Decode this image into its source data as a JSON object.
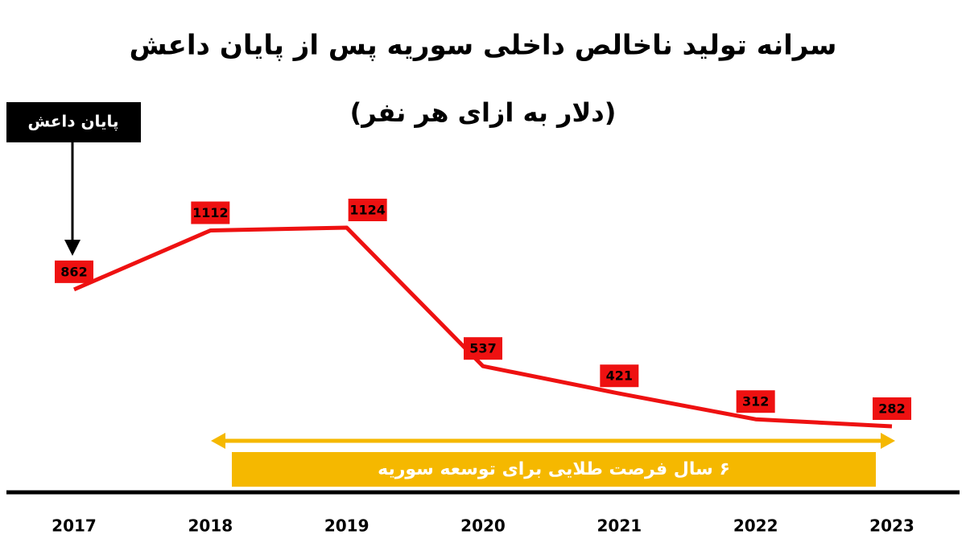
{
  "chart_data": {
    "type": "line",
    "title": "سرانه تولید ناخالص داخلی سوریه پس از پایان داعش",
    "subtitle": "(دلار به ازای هر نفر)",
    "annotations": [
      "پایان داعش",
      "۶ سال فرصت طلایی برای توسعه سوریه"
    ],
    "categories": [
      "2017",
      "2018",
      "2019",
      "2020",
      "2021",
      "2022",
      "2023"
    ],
    "series": [
      {
        "color": "#ee1111",
        "values": [
          862,
          1112,
          1124,
          537,
          421,
          312,
          282
        ]
      }
    ]
  }
}
